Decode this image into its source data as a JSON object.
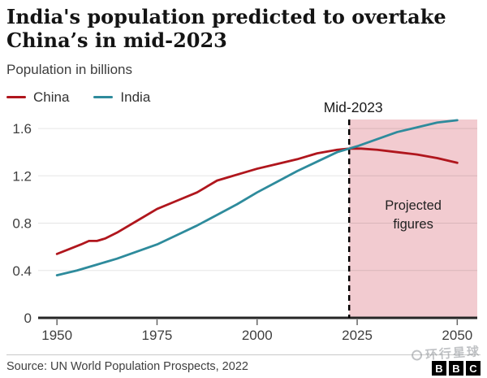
{
  "header": {
    "title_lines": [
      "India's population predicted to overtake",
      "China’s in mid-2023"
    ],
    "subtitle": "Population in billions"
  },
  "legend": [
    {
      "label": "China",
      "color": "#b0161d"
    },
    {
      "label": "India",
      "color": "#2e8b9c"
    }
  ],
  "footer": {
    "source": "Source: UN World Population Prospects, 2022",
    "watermark": "环行星球",
    "logo_letters": [
      "B",
      "B",
      "C"
    ]
  },
  "chart_data": {
    "type": "line",
    "title": "India's population predicted to overtake China’s in mid-2023",
    "subtitle": "Population in billions",
    "xlabel": "",
    "ylabel": "Population (billions)",
    "x_ticks": [
      1950,
      1975,
      2000,
      2025,
      2050
    ],
    "y_ticks": [
      0,
      0.4,
      0.8,
      1.2,
      1.6
    ],
    "xlim": [
      1945.3,
      2055
    ],
    "ylim": [
      0,
      1.676
    ],
    "grid": true,
    "legend_position": "top-left",
    "projection_start": 2023,
    "projection_label": "Mid-2023",
    "projected_label_lines": [
      "Projected",
      "figures"
    ],
    "series": [
      {
        "name": "China",
        "color": "#b0161d",
        "points": [
          [
            1950,
            0.54
          ],
          [
            1953,
            0.58
          ],
          [
            1956,
            0.62
          ],
          [
            1958,
            0.65
          ],
          [
            1960,
            0.65
          ],
          [
            1962,
            0.67
          ],
          [
            1965,
            0.72
          ],
          [
            1970,
            0.82
          ],
          [
            1975,
            0.92
          ],
          [
            1980,
            0.99
          ],
          [
            1985,
            1.06
          ],
          [
            1990,
            1.16
          ],
          [
            1993,
            1.19
          ],
          [
            1995,
            1.21
          ],
          [
            2000,
            1.26
          ],
          [
            2005,
            1.3
          ],
          [
            2010,
            1.34
          ],
          [
            2015,
            1.39
          ],
          [
            2020,
            1.42
          ],
          [
            2023,
            1.43
          ],
          [
            2026,
            1.43
          ],
          [
            2030,
            1.42
          ],
          [
            2035,
            1.4
          ],
          [
            2040,
            1.38
          ],
          [
            2045,
            1.35
          ],
          [
            2050,
            1.31
          ]
        ]
      },
      {
        "name": "India",
        "color": "#2e8b9c",
        "points": [
          [
            1950,
            0.36
          ],
          [
            1955,
            0.4
          ],
          [
            1960,
            0.45
          ],
          [
            1965,
            0.5
          ],
          [
            1970,
            0.56
          ],
          [
            1975,
            0.62
          ],
          [
            1980,
            0.7
          ],
          [
            1985,
            0.78
          ],
          [
            1990,
            0.87
          ],
          [
            1995,
            0.96
          ],
          [
            2000,
            1.06
          ],
          [
            2005,
            1.15
          ],
          [
            2010,
            1.24
          ],
          [
            2015,
            1.32
          ],
          [
            2020,
            1.4
          ],
          [
            2023,
            1.43
          ],
          [
            2025,
            1.45
          ],
          [
            2030,
            1.51
          ],
          [
            2035,
            1.57
          ],
          [
            2040,
            1.61
          ],
          [
            2045,
            1.65
          ],
          [
            2050,
            1.67
          ]
        ]
      }
    ],
    "colors": {
      "projection_fill": "#f2cbd0",
      "grid": "rgba(0,0,0,0.10)",
      "axis": "#262626",
      "tick": "#666666",
      "tick_label": "#3f3f3f",
      "dashed_line": "#000000",
      "annotation_text": "#1a1a1a"
    }
  }
}
